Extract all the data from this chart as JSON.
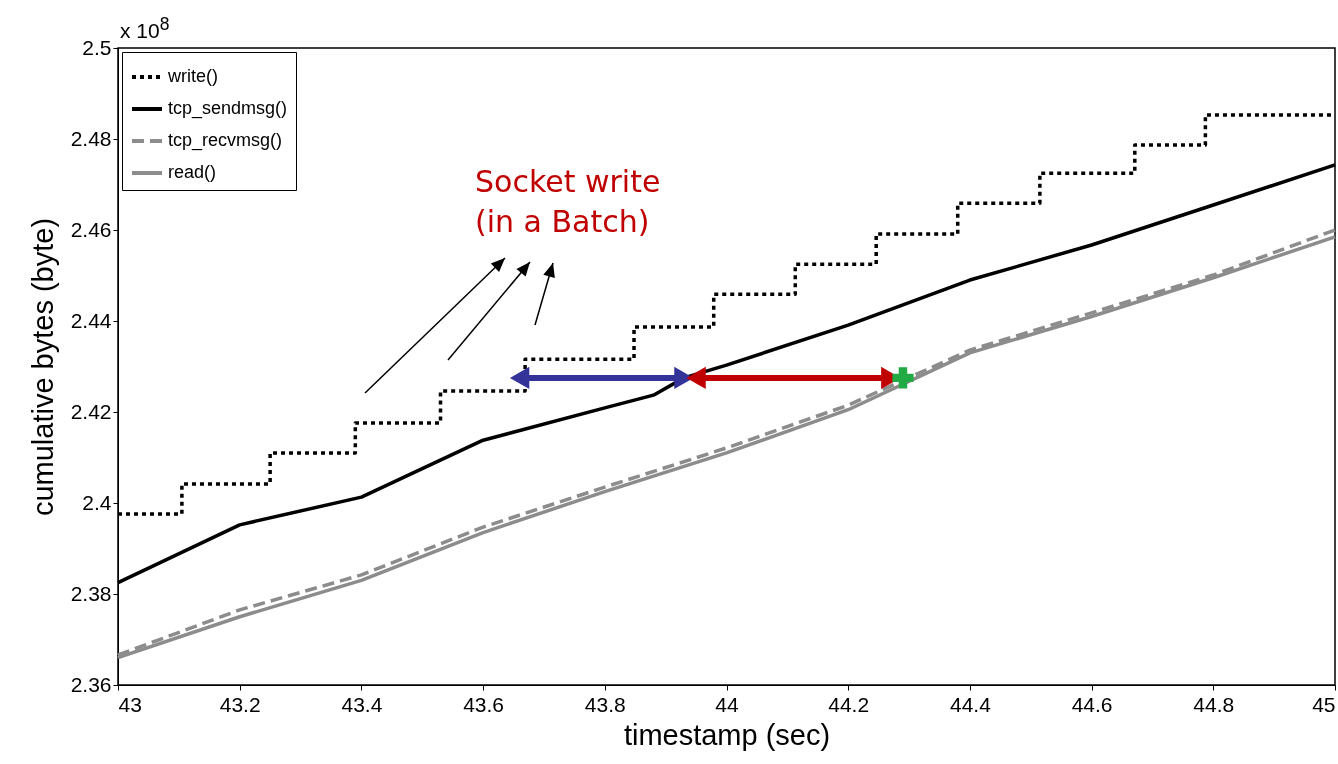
{
  "chart_data": {
    "type": "line",
    "xlabel": "timestamp (sec)",
    "ylabel": "cumulative bytes (byte)",
    "annotations": [
      "x 10$^{8}$",
      "Socket write\n(in a Batch)"
    ],
    "xlim": [
      43,
      45
    ],
    "xticks": [
      43,
      43.2,
      43.4,
      43.6,
      43.8,
      44,
      44.2,
      44.4,
      44.6,
      44.8,
      45
    ],
    "ylim": [
      2.36,
      2.5
    ],
    "yticks": [
      2.36,
      2.38,
      2.4,
      2.42,
      2.44,
      2.46,
      2.48,
      2.5
    ],
    "grid": false,
    "legend": "top left",
    "marker": "none",
    "series": [
      {
        "name": "write()",
        "type": "step",
        "color": "#000000",
        "line_style": "dotted",
        "x": [
          43,
          43.105,
          43.25,
          43.39,
          43.53,
          43.669,
          43.848,
          43.979,
          44.113,
          44.246,
          44.38,
          44.515,
          44.671,
          44.787,
          45
        ],
        "values": [
          2.3976,
          2.4042,
          2.411,
          2.4176,
          2.4246,
          2.4316,
          2.4387,
          2.4459,
          2.4525,
          2.4591,
          2.4659,
          2.4725,
          2.4787,
          2.4853,
          2.4853
        ]
      },
      {
        "name": "tcp_sendmsg()",
        "color": "#000000",
        "line_style": "solid",
        "x": [
          43,
          43.2,
          43.4,
          43.6,
          43.8,
          43.88,
          43.93,
          44,
          44.2,
          44.4,
          44.6,
          44.8,
          45
        ],
        "values": [
          2.3825,
          2.3952,
          2.4013,
          2.4138,
          2.4209,
          2.4237,
          2.4275,
          2.4303,
          2.4391,
          2.449,
          2.4567,
          2.4655,
          2.4743
        ]
      },
      {
        "name": "tcp_recvmsg()",
        "color": "#8c8c8c",
        "line_style": "dashed",
        "x": [
          43,
          43.2,
          43.4,
          43.6,
          43.8,
          44,
          44.2,
          44.4,
          44.6,
          44.8,
          45
        ],
        "values": [
          2.3666,
          2.3765,
          2.3842,
          2.3947,
          2.4035,
          2.4121,
          2.4215,
          2.4336,
          2.4418,
          2.4501,
          2.46
        ]
      },
      {
        "name": "read()",
        "color": "#8c8c8c",
        "line_style": "solid",
        "x": [
          43,
          43.2,
          43.4,
          43.6,
          43.8,
          44,
          44.2,
          44.4,
          44.6,
          44.8,
          45
        ],
        "values": [
          2.366,
          2.375,
          2.383,
          2.3935,
          2.4025,
          2.411,
          2.4205,
          2.433,
          2.441,
          2.4495,
          2.4585
        ]
      },
      {
        "color": "#333399",
        "line_style": "solid",
        "marker": "triangle",
        "x": [
          43.66,
          43.93
        ],
        "values": [
          2.4275,
          2.4275
        ]
      },
      {
        "color": "#c00000",
        "line_style": "solid",
        "marker": "triangle",
        "x": [
          43.95,
          44.27
        ],
        "values": [
          2.4275,
          2.4275
        ]
      },
      {
        "type": "scatter",
        "color": "#22aa44",
        "marker": "cross",
        "x": [
          44.29
        ],
        "values": [
          2.4275
        ]
      }
    ]
  }
}
